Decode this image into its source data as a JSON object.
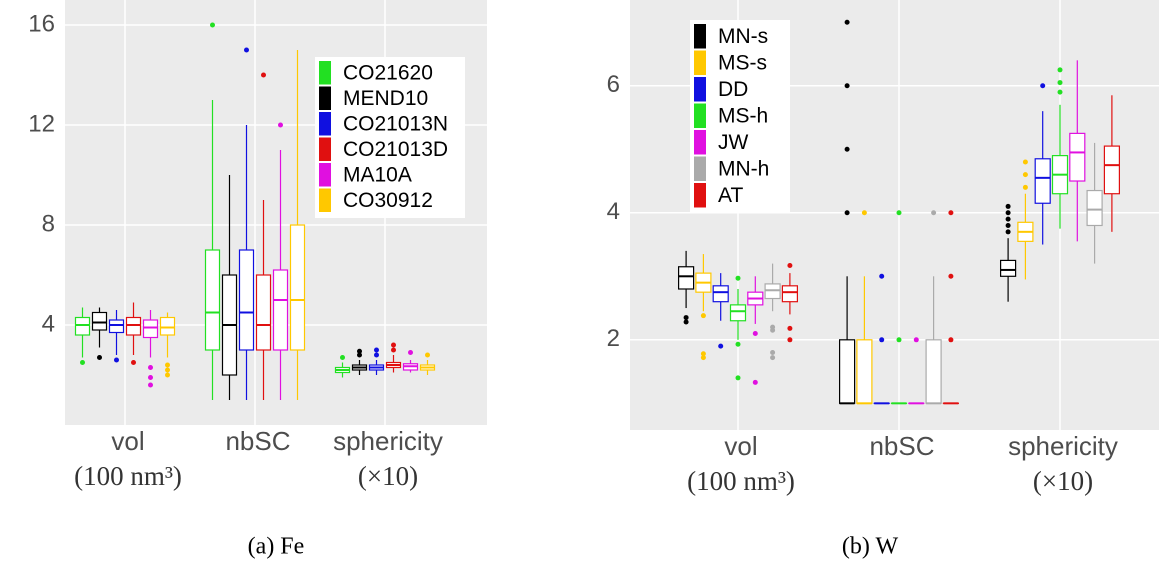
{
  "chart_data": [
    {
      "type": "box",
      "caption": "(a) Fe",
      "categories": [
        "vol",
        "nbSC",
        "sphericity"
      ],
      "category_sublabels": [
        "(100 nm³)",
        null,
        "(×10)"
      ],
      "ylim": [
        0,
        17
      ],
      "yticks": [
        4,
        8,
        12,
        16
      ],
      "grid": true,
      "legend": "top-right",
      "series": [
        {
          "name": "CO21620",
          "color": "#22e022",
          "values": [
            {
              "min": 2.7,
              "q1": 3.6,
              "median": 4.0,
              "q3": 4.3,
              "max": 4.7,
              "outliers": [
                2.5
              ]
            },
            {
              "min": 1,
              "q1": 3,
              "median": 4.5,
              "q3": 7,
              "max": 13,
              "outliers": [
                16
              ]
            },
            {
              "min": 1.9,
              "q1": 2.1,
              "median": 2.2,
              "q3": 2.3,
              "max": 2.5,
              "outliers": [
                2.7
              ]
            }
          ]
        },
        {
          "name": "MEND10",
          "color": "#000000",
          "values": [
            {
              "min": 3.1,
              "q1": 3.8,
              "median": 4.1,
              "q3": 4.5,
              "max": 4.7,
              "outliers": [
                2.7
              ]
            },
            {
              "min": 1,
              "q1": 2,
              "median": 4,
              "q3": 6,
              "max": 10,
              "outliers": []
            },
            {
              "min": 2.0,
              "q1": 2.2,
              "median": 2.3,
              "q3": 2.4,
              "max": 2.6,
              "outliers": [
                2.8,
                2.95
              ]
            }
          ]
        },
        {
          "name": "CO21013N",
          "color": "#1010e0",
          "values": [
            {
              "min": 2.8,
              "q1": 3.7,
              "median": 4.0,
              "q3": 4.2,
              "max": 4.6,
              "outliers": [
                2.6
              ]
            },
            {
              "min": 1,
              "q1": 3,
              "median": 4.5,
              "q3": 7,
              "max": 12,
              "outliers": [
                15
              ]
            },
            {
              "min": 2.0,
              "q1": 2.2,
              "median": 2.3,
              "q3": 2.4,
              "max": 2.6,
              "outliers": [
                2.8,
                3.0
              ]
            }
          ]
        },
        {
          "name": "CO21013D",
          "color": "#e01010",
          "values": [
            {
              "min": 2.8,
              "q1": 3.6,
              "median": 4.0,
              "q3": 4.3,
              "max": 4.9,
              "outliers": [
                2.5
              ]
            },
            {
              "min": 1,
              "q1": 3,
              "median": 4,
              "q3": 6,
              "max": 9,
              "outliers": [
                14
              ]
            },
            {
              "min": 2.1,
              "q1": 2.3,
              "median": 2.4,
              "q3": 2.5,
              "max": 2.8,
              "outliers": [
                3.0,
                3.2
              ]
            }
          ]
        },
        {
          "name": "MA10A",
          "color": "#e010e0",
          "values": [
            {
              "min": 2.7,
              "q1": 3.5,
              "median": 3.9,
              "q3": 4.2,
              "max": 4.6,
              "outliers": [
                2.3,
                1.9,
                1.6
              ]
            },
            {
              "min": 1,
              "q1": 3,
              "median": 5,
              "q3": 6.2,
              "max": 11,
              "outliers": [
                12
              ]
            },
            {
              "min": 2.1,
              "q1": 2.2,
              "median": 2.35,
              "q3": 2.45,
              "max": 2.6,
              "outliers": [
                2.9
              ]
            }
          ]
        },
        {
          "name": "CO30912",
          "color": "#ffc800",
          "values": [
            {
              "min": 2.7,
              "q1": 3.6,
              "median": 3.9,
              "q3": 4.3,
              "max": 4.5,
              "outliers": [
                2.4,
                2.2,
                2.0
              ]
            },
            {
              "min": 1,
              "q1": 3,
              "median": 5,
              "q3": 8,
              "max": 15,
              "outliers": []
            },
            {
              "min": 2.0,
              "q1": 2.2,
              "median": 2.3,
              "q3": 2.4,
              "max": 2.6,
              "outliers": [
                2.8
              ]
            }
          ]
        }
      ]
    },
    {
      "type": "box",
      "caption": "(b) W",
      "categories": [
        "vol",
        "nbSC",
        "sphericity"
      ],
      "category_sublabels": [
        "(100 nm³)",
        null,
        "(×10)"
      ],
      "ylim": [
        0.58,
        7.35
      ],
      "yticks": [
        2,
        4,
        6
      ],
      "grid": true,
      "legend": "top-left",
      "series": [
        {
          "name": "MN-s",
          "color": "#000000",
          "values": [
            {
              "min": 2.5,
              "q1": 2.8,
              "median": 3.0,
              "q3": 3.15,
              "max": 3.4,
              "outliers": [
                2.35,
                2.28
              ]
            },
            {
              "min": 1,
              "q1": 1,
              "median": 1,
              "q3": 2,
              "max": 3,
              "outliers": [
                4,
                5,
                6,
                7
              ]
            },
            {
              "min": 2.6,
              "q1": 3.0,
              "median": 3.1,
              "q3": 3.25,
              "max": 3.6,
              "outliers": [
                3.7,
                3.8,
                3.9,
                4.0,
                4.1
              ]
            }
          ]
        },
        {
          "name": "MS-s",
          "color": "#ffc800",
          "values": [
            {
              "min": 2.45,
              "q1": 2.75,
              "median": 2.9,
              "q3": 3.05,
              "max": 3.35,
              "outliers": [
                2.38,
                1.78,
                1.72
              ]
            },
            {
              "min": 1,
              "q1": 1,
              "median": 1,
              "q3": 2,
              "max": 3,
              "outliers": [
                4
              ]
            },
            {
              "min": 2.95,
              "q1": 3.55,
              "median": 3.7,
              "q3": 3.85,
              "max": 4.3,
              "outliers": [
                4.4,
                4.6,
                4.8
              ]
            }
          ]
        },
        {
          "name": "DD",
          "color": "#1010e0",
          "values": [
            {
              "min": 2.3,
              "q1": 2.6,
              "median": 2.75,
              "q3": 2.85,
              "max": 3.05,
              "outliers": [
                1.9
              ]
            },
            {
              "min": 1,
              "q1": 1,
              "median": 1,
              "q3": 1,
              "max": 1,
              "outliers": [
                2,
                3
              ]
            },
            {
              "min": 3.5,
              "q1": 4.15,
              "median": 4.55,
              "q3": 4.85,
              "max": 5.6,
              "outliers": [
                6.0
              ]
            }
          ]
        },
        {
          "name": "MS-h",
          "color": "#22e022",
          "values": [
            {
              "min": 2.0,
              "q1": 2.3,
              "median": 2.45,
              "q3": 2.55,
              "max": 2.8,
              "outliers": [
                2.97,
                1.93,
                1.4
              ]
            },
            {
              "min": 1,
              "q1": 1,
              "median": 1,
              "q3": 1,
              "max": 1,
              "outliers": [
                2,
                4
              ]
            },
            {
              "min": 3.75,
              "q1": 4.3,
              "median": 4.6,
              "q3": 4.9,
              "max": 5.7,
              "outliers": [
                5.9,
                6.05,
                6.25
              ]
            }
          ]
        },
        {
          "name": "JW",
          "color": "#e010e0",
          "values": [
            {
              "min": 2.25,
              "q1": 2.55,
              "median": 2.65,
              "q3": 2.75,
              "max": 3.0,
              "outliers": [
                2.1,
                1.33
              ]
            },
            {
              "min": 1,
              "q1": 1,
              "median": 1,
              "q3": 1,
              "max": 1,
              "outliers": [
                2
              ]
            },
            {
              "min": 3.55,
              "q1": 4.5,
              "median": 4.95,
              "q3": 5.25,
              "max": 6.4,
              "outliers": []
            }
          ]
        },
        {
          "name": "MN-h",
          "color": "#aaaaaa",
          "values": [
            {
              "min": 2.45,
              "q1": 2.65,
              "median": 2.78,
              "q3": 2.88,
              "max": 3.2,
              "outliers": [
                2.2,
                2.15,
                1.8,
                1.72
              ]
            },
            {
              "min": 1,
              "q1": 1,
              "median": 1,
              "q3": 2,
              "max": 3,
              "outliers": [
                4
              ]
            },
            {
              "min": 3.2,
              "q1": 3.8,
              "median": 4.05,
              "q3": 4.35,
              "max": 5.1,
              "outliers": []
            }
          ]
        },
        {
          "name": "AT",
          "color": "#e01010",
          "values": [
            {
              "min": 2.4,
              "q1": 2.6,
              "median": 2.75,
              "q3": 2.85,
              "max": 3.05,
              "outliers": [
                3.17,
                2.18,
                2.0
              ]
            },
            {
              "min": 1,
              "q1": 1,
              "median": 1,
              "q3": 1,
              "max": 1,
              "outliers": [
                2,
                3,
                4
              ]
            },
            {
              "min": 3.7,
              "q1": 4.3,
              "median": 4.75,
              "q3": 5.05,
              "max": 5.85,
              "outliers": []
            }
          ]
        }
      ]
    }
  ]
}
